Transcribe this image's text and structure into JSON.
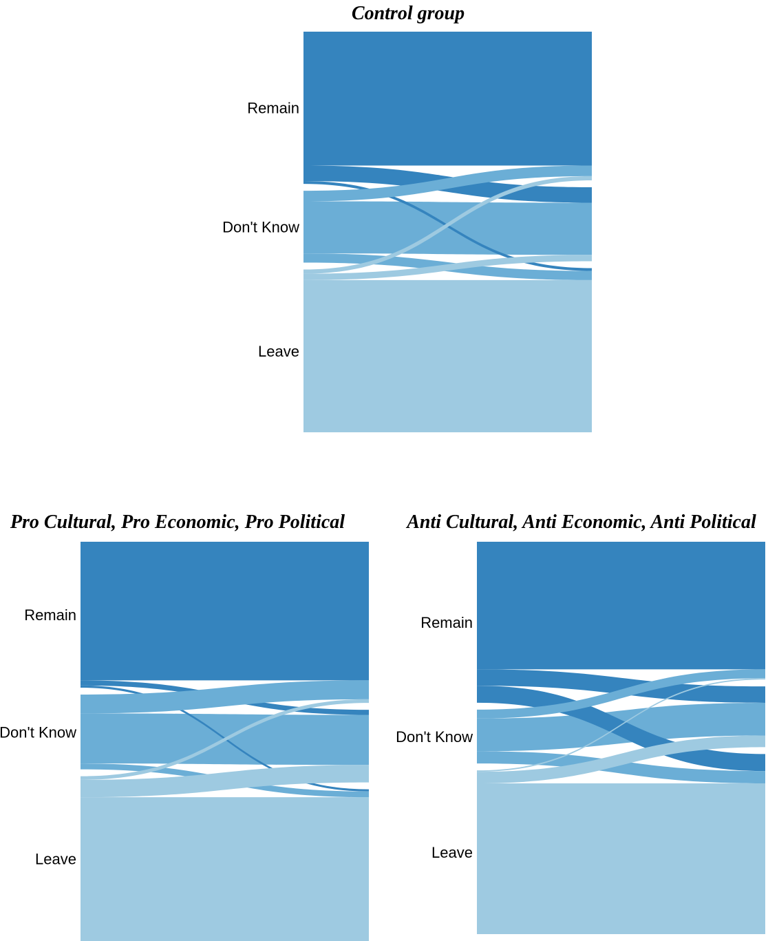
{
  "colors": {
    "Remain": "#3584be",
    "Don't Know": "#6baed6",
    "Leave": "#9ecae1"
  },
  "chart_data": [
    {
      "type": "sankey",
      "title": "Control group",
      "nodes": [
        "Remain",
        "Don't Know",
        "Leave"
      ],
      "flows": [
        {
          "from": "Remain",
          "to": "Remain",
          "value": 190
        },
        {
          "from": "Remain",
          "to": "Don't Know",
          "value": 22
        },
        {
          "from": "Remain",
          "to": "Leave",
          "value": 4
        },
        {
          "from": "Don't Know",
          "to": "Remain",
          "value": 15
        },
        {
          "from": "Don't Know",
          "to": "Don't Know",
          "value": 74
        },
        {
          "from": "Don't Know",
          "to": "Leave",
          "value": 13
        },
        {
          "from": "Leave",
          "to": "Remain",
          "value": 6
        },
        {
          "from": "Leave",
          "to": "Don't Know",
          "value": 9
        },
        {
          "from": "Leave",
          "to": "Leave",
          "value": 216
        }
      ]
    },
    {
      "type": "sankey",
      "title": "Pro Cultural, Pro Economic, Pro Political",
      "nodes": [
        "Remain",
        "Don't Know",
        "Leave"
      ],
      "flows": [
        {
          "from": "Remain",
          "to": "Remain",
          "value": 191
        },
        {
          "from": "Remain",
          "to": "Don't Know",
          "value": 7
        },
        {
          "from": "Remain",
          "to": "Leave",
          "value": 3
        },
        {
          "from": "Don't Know",
          "to": "Remain",
          "value": 26
        },
        {
          "from": "Don't Know",
          "to": "Don't Know",
          "value": 69
        },
        {
          "from": "Don't Know",
          "to": "Leave",
          "value": 8
        },
        {
          "from": "Leave",
          "to": "Remain",
          "value": 5
        },
        {
          "from": "Leave",
          "to": "Don't Know",
          "value": 24
        },
        {
          "from": "Leave",
          "to": "Leave",
          "value": 198
        }
      ]
    },
    {
      "type": "sankey",
      "title": "Anti Cultural, Anti Economic, Anti Political",
      "nodes": [
        "Remain",
        "Don't Know",
        "Leave"
      ],
      "flows": [
        {
          "from": "Remain",
          "to": "Remain",
          "value": 187
        },
        {
          "from": "Remain",
          "to": "Don't Know",
          "value": 24
        },
        {
          "from": "Remain",
          "to": "Leave",
          "value": 25
        },
        {
          "from": "Don't Know",
          "to": "Remain",
          "value": 13
        },
        {
          "from": "Don't Know",
          "to": "Don't Know",
          "value": 48
        },
        {
          "from": "Don't Know",
          "to": "Leave",
          "value": 18
        },
        {
          "from": "Leave",
          "to": "Remain",
          "value": 2
        },
        {
          "from": "Leave",
          "to": "Don't Know",
          "value": 17
        },
        {
          "from": "Leave",
          "to": "Leave",
          "value": 221
        }
      ]
    }
  ]
}
